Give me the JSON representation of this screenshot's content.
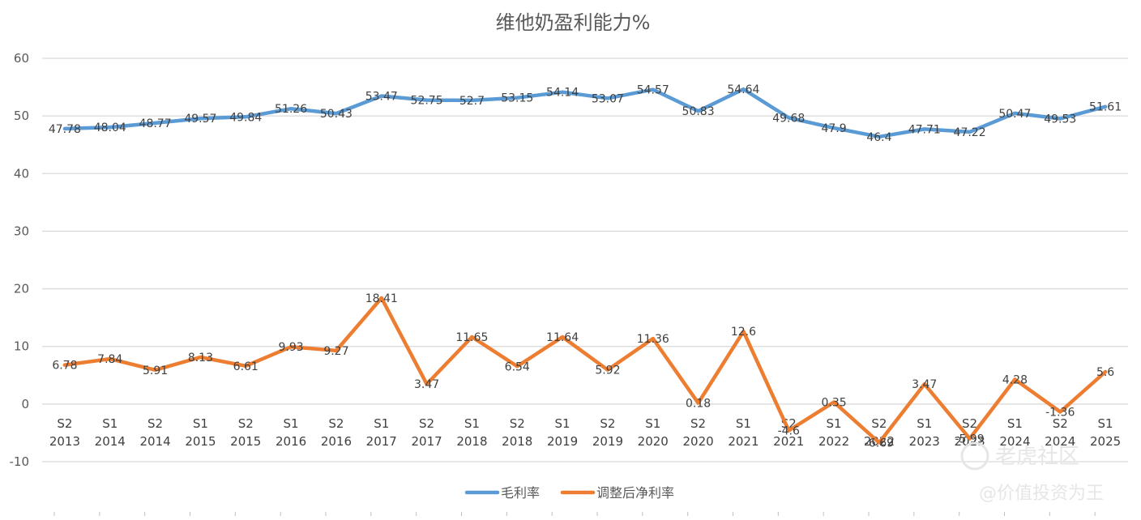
{
  "chart_data": {
    "type": "line",
    "title": "维他奶盈利能力%",
    "ylim": [
      -10,
      60
    ],
    "yticks": [
      -10,
      0,
      10,
      20,
      30,
      40,
      50,
      60
    ],
    "grid": true,
    "legend_position": "bottom",
    "categories": [
      [
        "S2",
        "2013"
      ],
      [
        "S1",
        "2014"
      ],
      [
        "S2",
        "2014"
      ],
      [
        "S1",
        "2015"
      ],
      [
        "S2",
        "2015"
      ],
      [
        "S1",
        "2016"
      ],
      [
        "S2",
        "2016"
      ],
      [
        "S1",
        "2017"
      ],
      [
        "S2",
        "2017"
      ],
      [
        "S1",
        "2018"
      ],
      [
        "S2",
        "2018"
      ],
      [
        "S1",
        "2019"
      ],
      [
        "S2",
        "2019"
      ],
      [
        "S1",
        "2020"
      ],
      [
        "S2",
        "2020"
      ],
      [
        "S1",
        "2021"
      ],
      [
        "S2",
        "2021"
      ],
      [
        "S1",
        "2022"
      ],
      [
        "S2",
        "2022"
      ],
      [
        "S1",
        "2023"
      ],
      [
        "S2",
        "2023"
      ],
      [
        "S1",
        "2024"
      ],
      [
        "S2",
        "2024"
      ],
      [
        "S1",
        "2025"
      ]
    ],
    "series": [
      {
        "name": "毛利率",
        "color": "#5B9BD5",
        "values": [
          47.78,
          48.04,
          48.77,
          49.57,
          49.84,
          51.26,
          50.43,
          53.47,
          52.75,
          52.7,
          53.15,
          54.14,
          53.07,
          54.57,
          50.83,
          54.64,
          49.68,
          47.9,
          46.4,
          47.71,
          47.22,
          50.47,
          49.53,
          51.61
        ]
      },
      {
        "name": "调整后净利率",
        "color": "#ED7D31",
        "values": [
          6.78,
          7.84,
          5.91,
          8.13,
          6.61,
          9.93,
          9.27,
          18.41,
          3.47,
          11.65,
          6.54,
          11.64,
          5.92,
          11.36,
          0.18,
          12.6,
          -4.6,
          0.35,
          -6.69,
          3.47,
          -5.99,
          4.28,
          -1.36,
          5.6
        ]
      }
    ]
  },
  "watermark": {
    "brand": "老虎社区",
    "handle": "@价值投资为王"
  }
}
